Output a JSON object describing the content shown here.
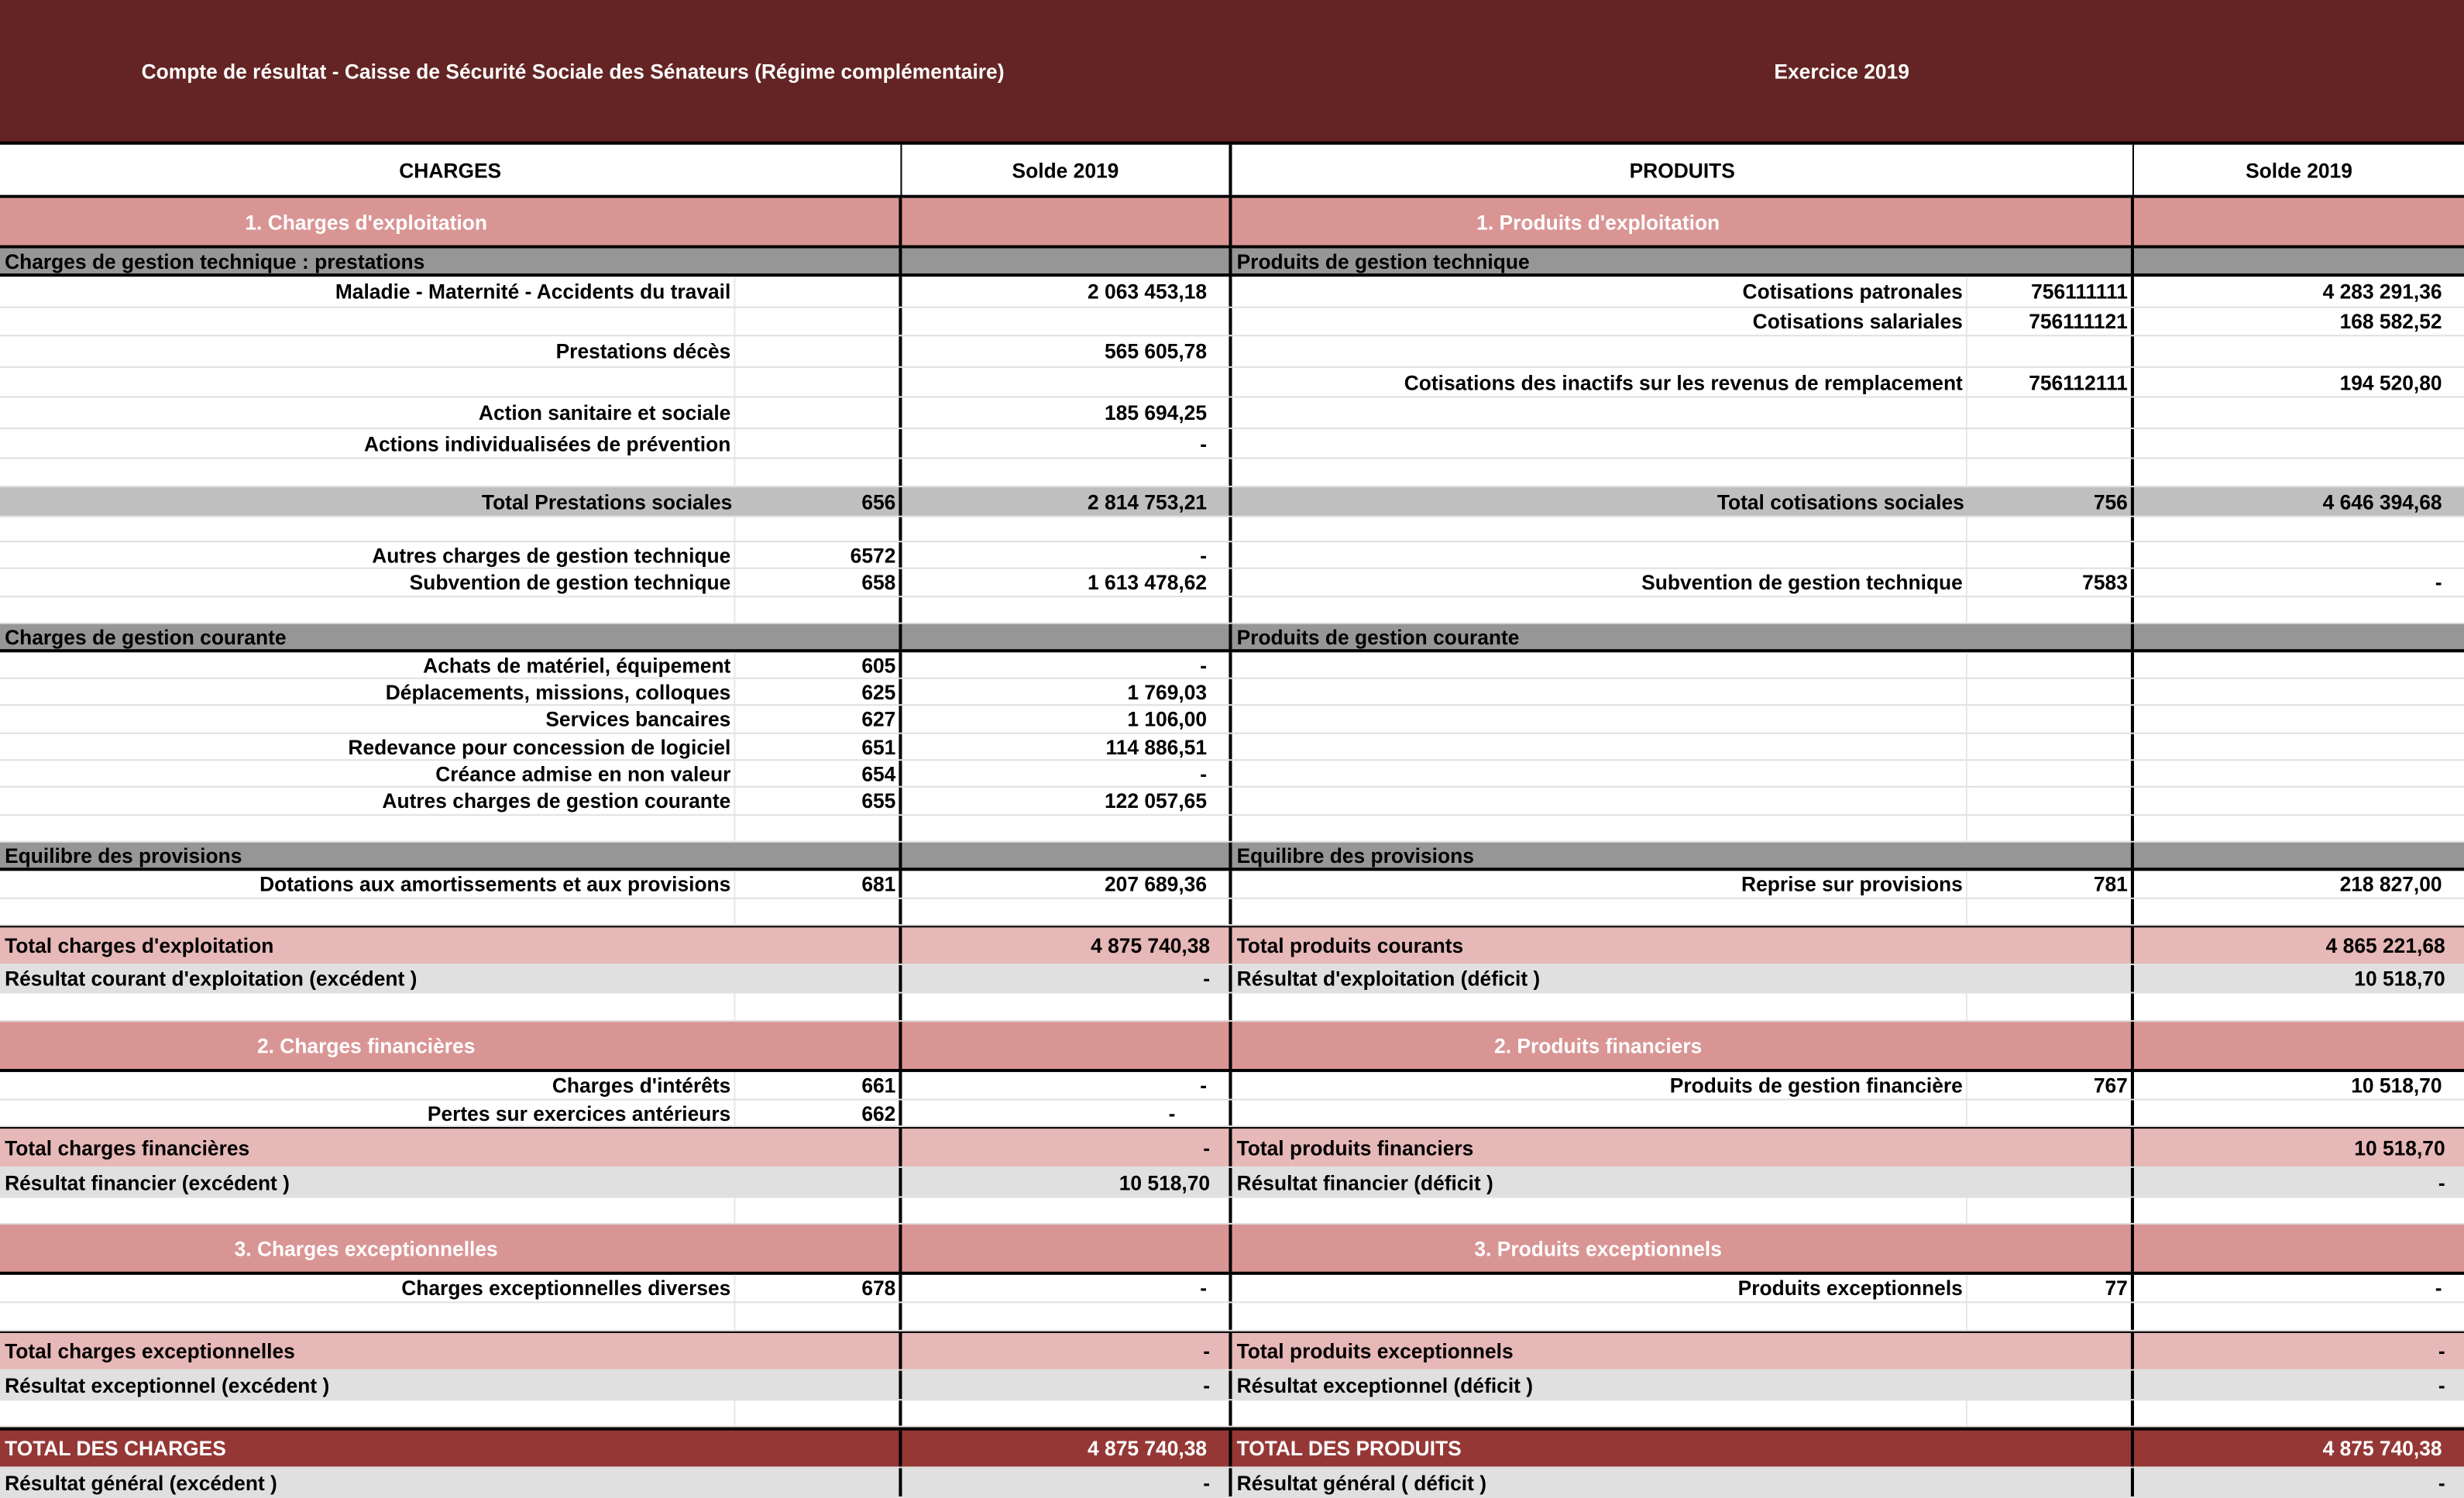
{
  "title": "Compte de résultat - Caisse de Sécurité Sociale des Sénateurs (Régime complémentaire)",
  "exercice": "Exercice 2019",
  "colors": {
    "title_bg": "#632423",
    "section": "#d99594",
    "category": "#969696",
    "subtotal": "#bfbfbf",
    "total": "#e6b8b7",
    "result": "#e0e0e0",
    "grand_total": "#953735"
  },
  "header": {
    "charges": "CHARGES",
    "charges_solde": "Solde 2019",
    "produits": "PRODUITS",
    "produits_solde": "Solde 2019"
  },
  "rows": [
    {
      "type": "section",
      "c": {
        "label": "1. Charges d'exploitation"
      },
      "p": {
        "label": "1. Produits d'exploitation"
      }
    },
    {
      "type": "category",
      "c": {
        "label": "Charges de gestion technique : prestations"
      },
      "p": {
        "label": "Produits de gestion technique"
      }
    },
    {
      "type": "item",
      "c": {
        "label": "Maladie - Maternité - Accidents du travail",
        "code": "",
        "value": "2 063 453,18"
      },
      "p": {
        "label": "Cotisations patronales",
        "code": "756111111",
        "value": "4 283 291,36"
      }
    },
    {
      "type": "item",
      "c": {},
      "p": {
        "label": "Cotisations salariales",
        "code": "756111121",
        "value": "168 582,52"
      }
    },
    {
      "type": "item",
      "c": {
        "label": "Prestations décès",
        "value": "565 605,78"
      },
      "p": {}
    },
    {
      "type": "item",
      "c": {},
      "p": {
        "label": "Cotisations des inactifs sur les revenus de remplacement",
        "code": "756112111",
        "value": "194 520,80"
      }
    },
    {
      "type": "item",
      "c": {
        "label": "Action sanitaire et sociale",
        "value": "185 694,25"
      },
      "p": {}
    },
    {
      "type": "item",
      "c": {
        "label": "Actions individualisées de prévention",
        "value": "-"
      },
      "p": {}
    },
    {
      "type": "item",
      "c": {},
      "p": {}
    },
    {
      "type": "subtotal",
      "c": {
        "label": "Total Prestations sociales",
        "code": "656",
        "value": "2 814 753,21"
      },
      "p": {
        "label": "Total cotisations sociales",
        "code": "756",
        "value": "4 646 394,68"
      }
    },
    {
      "type": "item",
      "c": {},
      "p": {}
    },
    {
      "type": "item",
      "c": {
        "label": "Autres charges de gestion technique",
        "code": "6572",
        "value": "-"
      },
      "p": {}
    },
    {
      "type": "item",
      "c": {
        "label": "Subvention de gestion technique",
        "code": "658",
        "value": "1 613 478,62"
      },
      "p": {
        "label": "Subvention de gestion technique",
        "code": "7583",
        "value": "-"
      }
    },
    {
      "type": "item",
      "c": {},
      "p": {}
    },
    {
      "type": "category",
      "c": {
        "label": "Charges de gestion courante"
      },
      "p": {
        "label": "Produits de gestion courante"
      }
    },
    {
      "type": "item",
      "c": {
        "label": "Achats de matériel, équipement",
        "code": "605",
        "value": "-"
      },
      "p": {}
    },
    {
      "type": "item",
      "c": {
        "label": "Déplacements, missions, colloques",
        "code": "625",
        "value": "1 769,03"
      },
      "p": {}
    },
    {
      "type": "item",
      "c": {
        "label": "Services bancaires",
        "code": "627",
        "value": "1 106,00"
      },
      "p": {}
    },
    {
      "type": "item",
      "c": {
        "label": "Redevance pour concession de logiciel",
        "code": "651",
        "value": "114 886,51"
      },
      "p": {}
    },
    {
      "type": "item",
      "c": {
        "label": "Créance admise en non valeur",
        "code": "654",
        "value": "-"
      },
      "p": {}
    },
    {
      "type": "item",
      "c": {
        "label": "Autres charges de gestion courante",
        "code": "655",
        "value": "122 057,65"
      },
      "p": {}
    },
    {
      "type": "item",
      "c": {},
      "p": {}
    },
    {
      "type": "category",
      "c": {
        "label": "Equilibre des provisions"
      },
      "p": {
        "label": "Equilibre des provisions"
      }
    },
    {
      "type": "item",
      "c": {
        "label": "Dotations aux amortissements et aux provisions",
        "code": "681",
        "value": "207 689,36"
      },
      "p": {
        "label": "Reprise sur provisions",
        "code": "781",
        "value": "218 827,00"
      }
    },
    {
      "type": "item",
      "c": {},
      "p": {}
    },
    {
      "type": "total",
      "c": {
        "label": "Total charges d'exploitation",
        "value": "4 875 740,38"
      },
      "p": {
        "label": "Total produits courants",
        "value": "4 865 221,68"
      }
    },
    {
      "type": "result",
      "c": {
        "label": "Résultat courant d'exploitation (excédent )",
        "value": "-"
      },
      "p": {
        "label": "Résultat d'exploitation (déficit )",
        "value": "10 518,70"
      }
    },
    {
      "type": "item",
      "c": {},
      "p": {}
    },
    {
      "type": "section",
      "c": {
        "label": "2. Charges financières"
      },
      "p": {
        "label": "2. Produits financiers"
      }
    },
    {
      "type": "item",
      "c": {
        "label": "Charges d'intérêts",
        "code": "661",
        "value": "-"
      },
      "p": {
        "label": "Produits de gestion financière",
        "code": "767",
        "value": "10 518,70"
      }
    },
    {
      "type": "item",
      "c": {
        "label": "Pertes sur exercices antérieurs",
        "code": "662",
        "value": "-"
      },
      "p": {}
    },
    {
      "type": "total",
      "c": {
        "label": "Total charges financières",
        "value": "-"
      },
      "p": {
        "label": "Total produits financiers",
        "value": "10 518,70"
      }
    },
    {
      "type": "result",
      "c": {
        "label": "Résultat financier (excédent )",
        "value": "10 518,70"
      },
      "p": {
        "label": "Résultat financier (déficit )",
        "value": "-"
      }
    },
    {
      "type": "item",
      "c": {},
      "p": {}
    },
    {
      "type": "section",
      "c": {
        "label": "3. Charges exceptionnelles"
      },
      "p": {
        "label": "3. Produits exceptionnels"
      }
    },
    {
      "type": "item",
      "c": {
        "label": "Charges exceptionnelles diverses",
        "code": "678",
        "value": "-"
      },
      "p": {
        "label": "Produits exceptionnels",
        "code": "77",
        "value": "-"
      }
    },
    {
      "type": "item",
      "c": {},
      "p": {}
    },
    {
      "type": "total",
      "c": {
        "label": "Total charges exceptionnelles",
        "value": "-"
      },
      "p": {
        "label": "Total produits exceptionnels",
        "value": "-"
      }
    },
    {
      "type": "result",
      "c": {
        "label": "Résultat exceptionnel (excédent )",
        "value": "-"
      },
      "p": {
        "label": "Résultat exceptionnel (déficit )",
        "value": "-"
      }
    },
    {
      "type": "item",
      "c": {},
      "p": {}
    },
    {
      "type": "grand",
      "c": {
        "label": "TOTAL DES CHARGES",
        "value": "4 875 740,38"
      },
      "p": {
        "label": "TOTAL DES PRODUITS",
        "value": "4 875 740,38"
      }
    },
    {
      "type": "result",
      "c": {
        "label": "Résultat général (excédent )",
        "value": "-"
      },
      "p": {
        "label": "Résultat général ( déficit )",
        "value": "-"
      }
    }
  ]
}
